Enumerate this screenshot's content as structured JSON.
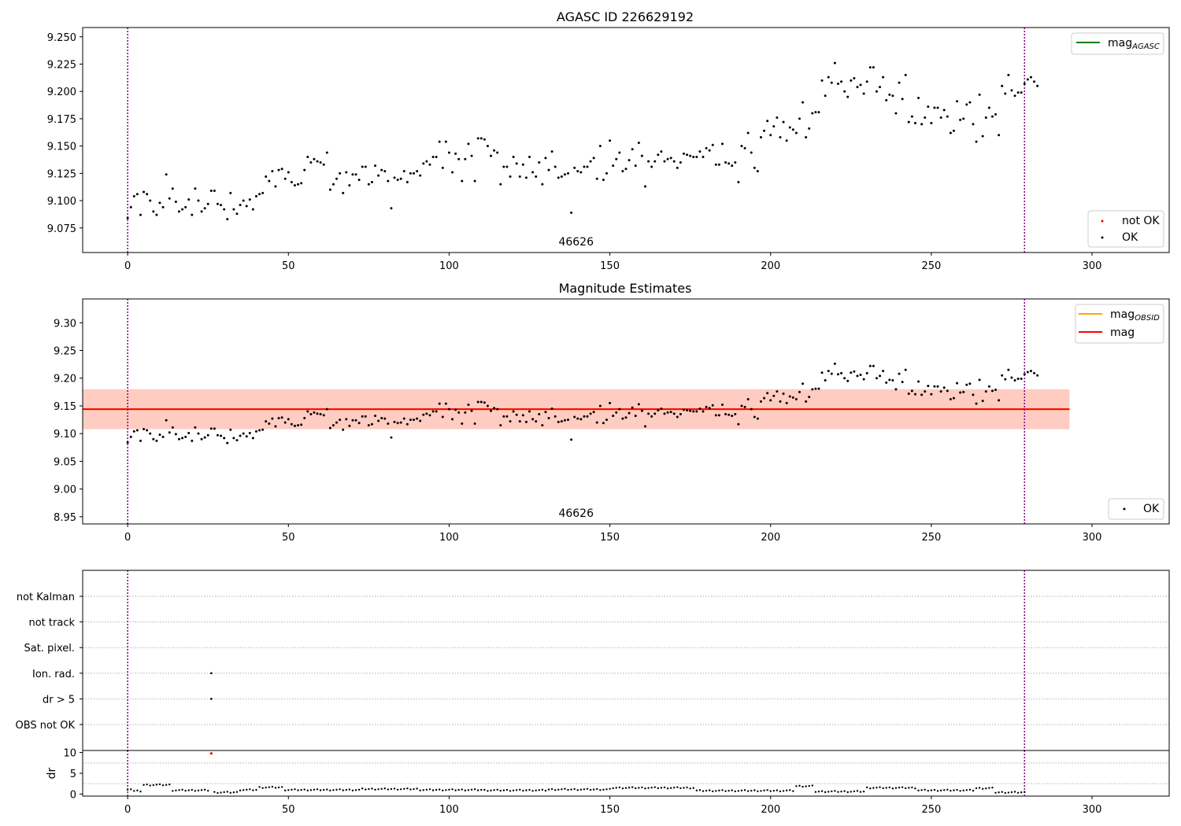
{
  "figure": {
    "background": "#ffffff"
  },
  "colors": {
    "ok": "#000000",
    "not_ok": "#ff0000",
    "mag_agasc": "#008000",
    "mag_obsid": "#ffa500",
    "mag": "#ff0000",
    "band_outer": "#ffc0cb",
    "band_inner": "#ffa07a",
    "obs_boundary": "#800080",
    "grid": "#b0b0b0"
  },
  "chart_data": [
    {
      "type": "scatter",
      "title": "AGASC ID 226629192",
      "xlim": [
        -14,
        324
      ],
      "ylim": [
        9.0525,
        9.2585
      ],
      "xticks": [
        0,
        50,
        100,
        150,
        200,
        250,
        300
      ],
      "yticks": [
        9.075,
        9.1,
        9.125,
        9.15,
        9.175,
        9.2,
        9.225,
        9.25
      ],
      "ytick_labels": [
        "9.075",
        "9.100",
        "9.125",
        "9.150",
        "9.175",
        "9.200",
        "9.225",
        "9.250"
      ],
      "obs_boundaries": [
        0,
        279
      ],
      "obsid_label": {
        "text": "46626",
        "x": 139.5
      },
      "legends": [
        {
          "position": "upper right",
          "entries": [
            {
              "label": "mag",
              "subscript": "AGASC",
              "marker": "line",
              "color": "#008000"
            }
          ]
        },
        {
          "position": "lower right",
          "entries": [
            {
              "label": "not OK",
              "marker": "dot",
              "color": "#ff0000"
            },
            {
              "label": "OK",
              "marker": "dot",
              "color": "#000000"
            }
          ]
        }
      ],
      "series": [
        {
          "name": "OK",
          "color": "#000000"
        },
        {
          "name": "not OK",
          "color": "#ff0000",
          "points": []
        }
      ]
    },
    {
      "type": "scatter",
      "title": "Magnitude Estimates",
      "xlim": [
        -14,
        324
      ],
      "ylim": [
        8.937,
        9.343
      ],
      "xticks": [
        0,
        50,
        100,
        150,
        200,
        250,
        300
      ],
      "yticks": [
        8.95,
        9.0,
        9.05,
        9.1,
        9.15,
        9.2,
        9.25,
        9.3
      ],
      "ytick_labels": [
        "8.95",
        "9.00",
        "9.05",
        "9.10",
        "9.15",
        "9.20",
        "9.25",
        "9.30"
      ],
      "obs_boundaries": [
        0,
        279
      ],
      "obsid_label": {
        "text": "46626",
        "x": 139.5
      },
      "mag_line": {
        "value": 9.144,
        "x_range": [
          -14,
          293
        ]
      },
      "mag_obsid_line": {
        "value": 9.144,
        "x_range": [
          -14,
          293
        ]
      },
      "band_outer": {
        "low": 9.108,
        "high": 9.18,
        "x_range": [
          -14,
          293
        ]
      },
      "band_inner": {
        "low": 9.108,
        "high": 9.18,
        "x_range": [
          -14,
          293
        ]
      },
      "legends": [
        {
          "position": "upper right",
          "entries": [
            {
              "label": "mag",
              "subscript": "OBSID",
              "marker": "line",
              "color": "#ffa500"
            },
            {
              "label": "mag",
              "marker": "line",
              "color": "#ff0000"
            }
          ]
        },
        {
          "position": "lower right",
          "entries": [
            {
              "label": "OK",
              "marker": "dot",
              "color": "#000000"
            }
          ]
        }
      ],
      "series": [
        {
          "name": "OK",
          "color": "#000000"
        }
      ]
    },
    {
      "type": "scatter",
      "title": "",
      "xlim": [
        -14,
        324
      ],
      "categories": [
        "not Kalman",
        "not track",
        "Sat. pixel.",
        "Ion. rad.",
        "dr > 5",
        "OBS not OK"
      ],
      "obs_boundaries": [
        0,
        279
      ],
      "flag_points": [
        {
          "category": "Ion. rad.",
          "x": 26
        },
        {
          "category": "dr > 5",
          "x": 26
        }
      ]
    },
    {
      "type": "scatter",
      "title": "",
      "xlim": [
        -14,
        324
      ],
      "ylim": [
        -0.5,
        10.5
      ],
      "ylabel": "dr",
      "xticks": [
        0,
        50,
        100,
        150,
        200,
        250,
        300
      ],
      "yticks": [
        0,
        5,
        10
      ],
      "ytick_labels": [
        "0",
        "5",
        "10"
      ],
      "obs_boundaries": [
        0,
        279
      ],
      "not_ok_points": [
        {
          "x": 26,
          "y": 9.8
        }
      ],
      "segments": [
        {
          "x_range": [
            0,
            1
          ],
          "level": 1.2
        },
        {
          "x_range": [
            2,
            4
          ],
          "level": 0.7
        },
        {
          "x_range": [
            5,
            13
          ],
          "level": 2.2
        },
        {
          "x_range": [
            14,
            25
          ],
          "level": 0.9
        },
        {
          "x_range": [
            27,
            34
          ],
          "level": 0.4
        },
        {
          "x_range": [
            35,
            40
          ],
          "level": 1.0
        },
        {
          "x_range": [
            41,
            48
          ],
          "level": 1.6
        },
        {
          "x_range": [
            49,
            72
          ],
          "level": 1.0
        },
        {
          "x_range": [
            73,
            90
          ],
          "level": 1.2
        },
        {
          "x_range": [
            91,
            110
          ],
          "level": 1.0
        },
        {
          "x_range": [
            111,
            130
          ],
          "level": 0.9
        },
        {
          "x_range": [
            131,
            150
          ],
          "level": 1.1
        },
        {
          "x_range": [
            151,
            176
          ],
          "level": 1.5
        },
        {
          "x_range": [
            177,
            207
          ],
          "level": 0.8
        },
        {
          "x_range": [
            208,
            213
          ],
          "level": 1.9
        },
        {
          "x_range": [
            214,
            229
          ],
          "level": 0.6
        },
        {
          "x_range": [
            230,
            245
          ],
          "level": 1.5
        },
        {
          "x_range": [
            246,
            263
          ],
          "level": 0.9
        },
        {
          "x_range": [
            264,
            269
          ],
          "level": 1.4
        },
        {
          "x_range": [
            270,
            279
          ],
          "level": 0.4
        }
      ]
    }
  ]
}
